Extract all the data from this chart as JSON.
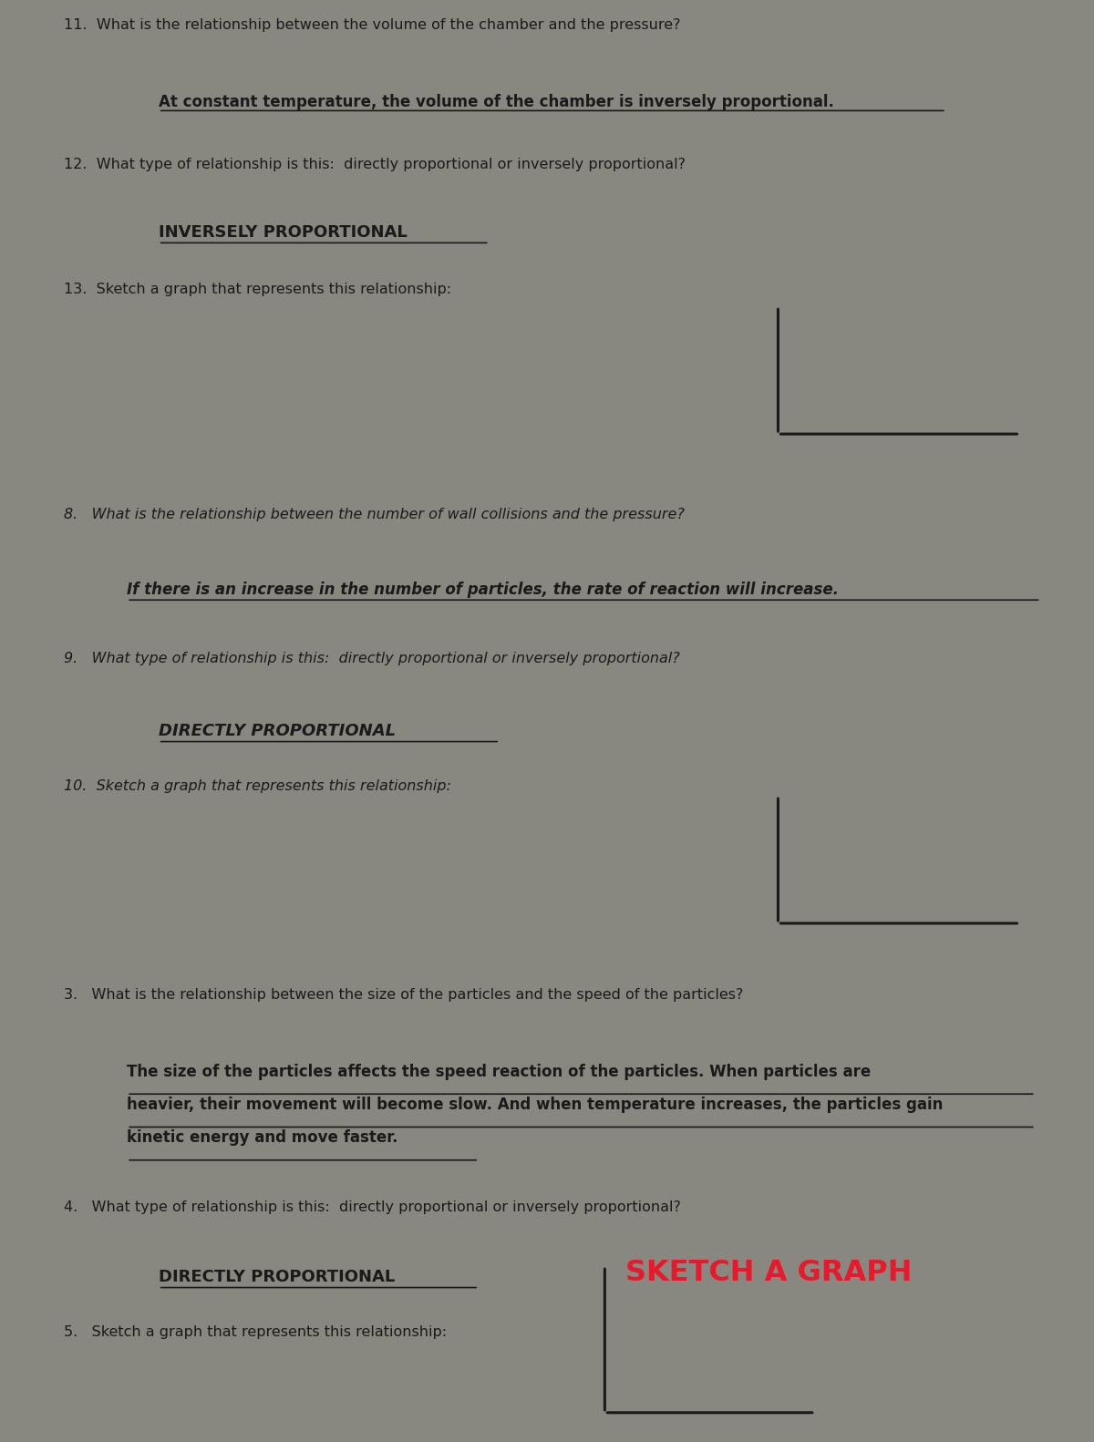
{
  "bg_color_panel1": "#d8d5cf",
  "bg_color_panel2": "#c5c1ba",
  "bg_color_panel3": "#cbc8c2",
  "fig_bg": "#888880",
  "text_color": "#1a1a1a",
  "red_color": "#e8192c",
  "panel1": {
    "q11_text": "11.  What is the relationship between the volume of the chamber and the pressure?",
    "q11_answer": "At constant temperature, the volume of the chamber is inversely proportional.",
    "q12_text": "12.  What type of relationship is this:  directly proportional or inversely proportional?",
    "q12_answer": "INVERSELY PROPORTIONAL",
    "q13_text": "13.  Sketch a graph that represents this relationship:"
  },
  "panel2": {
    "q8_text": "8.   What is the relationship between the number of wall collisions and the pressure?",
    "q8_answer": "If there is an increase in the number of particles, the rate of reaction will increase.",
    "q9_text": "9.   What type of relationship is this:  directly proportional or inversely proportional?",
    "q9_answer": "DIRECTLY PROPORTIONAL",
    "q10_text": "10.  Sketch a graph that represents this relationship:"
  },
  "panel3": {
    "q3_text": "3.   What is the relationship between the size of the particles and the speed of the particles?",
    "q3_answer_line1": "The size of the particles affects the speed reaction of the particles. When particles are",
    "q3_answer_line2": "heavier, their movement will become slow. And when temperature increases, the particles gain",
    "q3_answer_line3": "kinetic energy and move faster.",
    "q4_text": "4.   What type of relationship is this:  directly proportional or inversely proportional?",
    "q4_answer": "DIRECTLY PROPORTIONAL",
    "q4_annotation": "SKETCH A GRAPH",
    "q5_text": "5.   Sketch a graph that represents this relationship:"
  }
}
